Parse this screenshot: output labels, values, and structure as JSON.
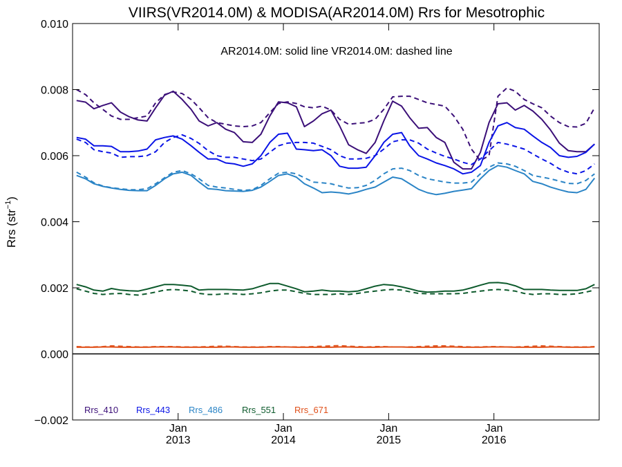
{
  "chart_data": {
    "type": "line",
    "title": "VIIRS(VR2014.0M) & MODISA(AR2014.0M)  Rrs for Mesotrophic",
    "subtitle": "AR2014.0M: solid line   VR2014.0M: dashed line",
    "ylabel": "Rrs (str",
    "ylabel_sup": "−1",
    "ylabel_close": ")",
    "ylim": [
      -0.002,
      0.01
    ],
    "yticks": [
      -0.002,
      0.0,
      0.002,
      0.004,
      0.006,
      0.008,
      0.01
    ],
    "ytick_labels": [
      "−0.002",
      "0.000",
      "0.002",
      "0.004",
      "0.006",
      "0.008",
      "0.010"
    ],
    "xlim": [
      "2012-01-01",
      "2016-12-31"
    ],
    "xticks": [
      {
        "date": "2013-01-01",
        "month": "Jan",
        "year": "2013"
      },
      {
        "date": "2014-01-01",
        "month": "Jan",
        "year": "2014"
      },
      {
        "date": "2015-01-01",
        "month": "Jan",
        "year": "2015"
      },
      {
        "date": "2016-01-01",
        "month": "Jan",
        "year": "2016"
      }
    ],
    "zero_line": 0.0,
    "grid": false,
    "legend_position": "bottom-left",
    "x": [
      "2012-01",
      "2012-02",
      "2012-03",
      "2012-04",
      "2012-05",
      "2012-06",
      "2012-07",
      "2012-08",
      "2012-09",
      "2012-10",
      "2012-11",
      "2012-12",
      "2013-01",
      "2013-02",
      "2013-03",
      "2013-04",
      "2013-05",
      "2013-06",
      "2013-07",
      "2013-08",
      "2013-09",
      "2013-10",
      "2013-11",
      "2013-12",
      "2014-01",
      "2014-02",
      "2014-03",
      "2014-04",
      "2014-05",
      "2014-06",
      "2014-07",
      "2014-08",
      "2014-09",
      "2014-10",
      "2014-11",
      "2014-12",
      "2015-01",
      "2015-02",
      "2015-03",
      "2015-04",
      "2015-05",
      "2015-06",
      "2015-07",
      "2015-08",
      "2015-09",
      "2015-10",
      "2015-11",
      "2015-12",
      "2016-01",
      "2016-02",
      "2016-03",
      "2016-04",
      "2016-05",
      "2016-06",
      "2016-07",
      "2016-08",
      "2016-09",
      "2016-10",
      "2016-11",
      "2016-12"
    ],
    "series": [
      {
        "name": "Rrs_410",
        "source": "AR2014.0M",
        "style": "solid",
        "color": "#3b0f78",
        "values": [
          0.00767,
          0.00762,
          0.00742,
          0.00752,
          0.0076,
          0.00732,
          0.00718,
          0.00708,
          0.00705,
          0.00745,
          0.00783,
          0.00795,
          0.0077,
          0.0074,
          0.00705,
          0.0069,
          0.007,
          0.0068,
          0.0067,
          0.00642,
          0.0064,
          0.00665,
          0.0072,
          0.00763,
          0.0076,
          0.00748,
          0.00688,
          0.00705,
          0.00727,
          0.00738,
          0.0069,
          0.00633,
          0.00618,
          0.00607,
          0.0064,
          0.00705,
          0.00765,
          0.0075,
          0.00715,
          0.00683,
          0.00685,
          0.00655,
          0.0064,
          0.0058,
          0.0056,
          0.0056,
          0.0061,
          0.007,
          0.00757,
          0.0076,
          0.00738,
          0.00752,
          0.00735,
          0.0071,
          0.00678,
          0.00638,
          0.00615,
          0.00612,
          0.00612,
          0.00635
        ]
      },
      {
        "name": "Rrs_410",
        "source": "VR2014.0M",
        "style": "dashed",
        "color": "#3b0f78",
        "values": [
          0.008,
          0.00785,
          0.0076,
          0.0074,
          0.0072,
          0.0071,
          0.0071,
          0.00715,
          0.0072,
          0.0076,
          0.00785,
          0.00793,
          0.00788,
          0.0077,
          0.00745,
          0.00715,
          0.007,
          0.00695,
          0.0069,
          0.00688,
          0.0069,
          0.007,
          0.0073,
          0.00758,
          0.00763,
          0.00758,
          0.00748,
          0.00745,
          0.0075,
          0.00738,
          0.0071,
          0.00695,
          0.00698,
          0.007,
          0.0071,
          0.0074,
          0.00778,
          0.0078,
          0.0078,
          0.0077,
          0.0076,
          0.00755,
          0.0075,
          0.0072,
          0.0068,
          0.0062,
          0.00585,
          0.006,
          0.0078,
          0.00805,
          0.00795,
          0.0077,
          0.00757,
          0.00745,
          0.0072,
          0.007,
          0.00688,
          0.00687,
          0.00698,
          0.00745
        ]
      },
      {
        "name": "Rrs_443",
        "source": "AR2014.0M",
        "style": "solid",
        "color": "#0a14e6",
        "values": [
          0.00655,
          0.0065,
          0.0063,
          0.0063,
          0.00628,
          0.00612,
          0.00612,
          0.00614,
          0.0062,
          0.00648,
          0.00655,
          0.0066,
          0.0065,
          0.0063,
          0.0061,
          0.0059,
          0.0059,
          0.00578,
          0.00575,
          0.00568,
          0.00575,
          0.006,
          0.0064,
          0.00665,
          0.00668,
          0.0062,
          0.00618,
          0.00615,
          0.00618,
          0.006,
          0.00568,
          0.00562,
          0.00562,
          0.00565,
          0.006,
          0.0064,
          0.00665,
          0.0067,
          0.0063,
          0.006,
          0.0059,
          0.00578,
          0.0057,
          0.0056,
          0.00545,
          0.0055,
          0.0057,
          0.0064,
          0.0069,
          0.007,
          0.00685,
          0.0068,
          0.0066,
          0.0064,
          0.00625,
          0.006,
          0.00595,
          0.00598,
          0.0061,
          0.00635
        ]
      },
      {
        "name": "Rrs_443",
        "source": "VR2014.0M",
        "style": "dashed",
        "color": "#0a14e6",
        "values": [
          0.0065,
          0.0064,
          0.00618,
          0.00612,
          0.00608,
          0.00595,
          0.00597,
          0.00597,
          0.006,
          0.00612,
          0.0064,
          0.00655,
          0.00663,
          0.00652,
          0.00637,
          0.00615,
          0.006,
          0.00595,
          0.00595,
          0.0059,
          0.00585,
          0.0059,
          0.0061,
          0.0063,
          0.00638,
          0.0064,
          0.0064,
          0.00638,
          0.00628,
          0.00618,
          0.006,
          0.0059,
          0.0059,
          0.00592,
          0.006,
          0.0062,
          0.00642,
          0.00648,
          0.00648,
          0.00638,
          0.0062,
          0.00608,
          0.00598,
          0.0059,
          0.0058,
          0.00573,
          0.0059,
          0.00615,
          0.0064,
          0.00635,
          0.00628,
          0.0062,
          0.00605,
          0.0059,
          0.00577,
          0.0056,
          0.0055,
          0.00545,
          0.00555,
          0.00575
        ]
      },
      {
        "name": "Rrs_486",
        "source": "AR2014.0M",
        "style": "solid",
        "color": "#2a84c6",
        "values": [
          0.0054,
          0.0053,
          0.00515,
          0.00507,
          0.00502,
          0.00498,
          0.00495,
          0.00494,
          0.00494,
          0.0051,
          0.0053,
          0.00545,
          0.0055,
          0.0054,
          0.0052,
          0.005,
          0.00498,
          0.00494,
          0.00493,
          0.00492,
          0.00495,
          0.00505,
          0.00522,
          0.0054,
          0.00545,
          0.00535,
          0.00515,
          0.00502,
          0.00488,
          0.0049,
          0.00488,
          0.00484,
          0.0049,
          0.00498,
          0.00505,
          0.0052,
          0.00535,
          0.0053,
          0.00515,
          0.00498,
          0.00488,
          0.00482,
          0.00486,
          0.00492,
          0.00496,
          0.005,
          0.0053,
          0.00555,
          0.0057,
          0.00565,
          0.00555,
          0.00545,
          0.00522,
          0.00515,
          0.00505,
          0.00497,
          0.0049,
          0.00488,
          0.00498,
          0.00532
        ]
      },
      {
        "name": "Rrs_486",
        "source": "VR2014.0M",
        "style": "dashed",
        "color": "#2a84c6",
        "values": [
          0.0055,
          0.00535,
          0.00518,
          0.00508,
          0.00503,
          0.005,
          0.00497,
          0.00497,
          0.005,
          0.00515,
          0.00533,
          0.0055,
          0.00555,
          0.00545,
          0.0053,
          0.0051,
          0.00505,
          0.00502,
          0.00498,
          0.00495,
          0.00497,
          0.0051,
          0.0053,
          0.00547,
          0.0055,
          0.00545,
          0.00533,
          0.0052,
          0.00518,
          0.00515,
          0.00508,
          0.00502,
          0.00503,
          0.0051,
          0.00525,
          0.00545,
          0.0056,
          0.00562,
          0.00555,
          0.0054,
          0.0053,
          0.00525,
          0.0052,
          0.00517,
          0.00517,
          0.0052,
          0.00545,
          0.00565,
          0.00578,
          0.00575,
          0.00568,
          0.00555,
          0.0054,
          0.00535,
          0.0053,
          0.00523,
          0.00516,
          0.00515,
          0.00525,
          0.00545
        ]
      },
      {
        "name": "Rrs_551",
        "source": "AR2014.0M",
        "style": "solid",
        "color": "#0d5a2c",
        "values": [
          0.0021,
          0.00203,
          0.00193,
          0.0019,
          0.00198,
          0.00193,
          0.00191,
          0.0019,
          0.00196,
          0.00203,
          0.0021,
          0.0021,
          0.00208,
          0.00205,
          0.00193,
          0.00195,
          0.00195,
          0.00195,
          0.00194,
          0.00193,
          0.00197,
          0.00205,
          0.00213,
          0.00213,
          0.00205,
          0.00197,
          0.00188,
          0.0019,
          0.00193,
          0.0019,
          0.0019,
          0.00188,
          0.0019,
          0.00197,
          0.00205,
          0.0021,
          0.00208,
          0.00203,
          0.00197,
          0.0019,
          0.00187,
          0.00188,
          0.0019,
          0.0019,
          0.00193,
          0.002,
          0.00208,
          0.00215,
          0.00216,
          0.00213,
          0.00206,
          0.00195,
          0.00195,
          0.00195,
          0.00193,
          0.00192,
          0.00192,
          0.00192,
          0.00197,
          0.0021
        ]
      },
      {
        "name": "Rrs_551",
        "source": "VR2014.0M",
        "style": "dashed",
        "color": "#0d5a2c",
        "values": [
          0.00197,
          0.0019,
          0.00183,
          0.0018,
          0.00182,
          0.00183,
          0.0018,
          0.00178,
          0.00182,
          0.00187,
          0.00193,
          0.00195,
          0.00193,
          0.0019,
          0.00183,
          0.0018,
          0.0018,
          0.00182,
          0.00182,
          0.0018,
          0.00182,
          0.00185,
          0.0019,
          0.00193,
          0.00193,
          0.00188,
          0.00183,
          0.0018,
          0.0018,
          0.0018,
          0.00182,
          0.0018,
          0.00183,
          0.00187,
          0.0019,
          0.00193,
          0.00195,
          0.00193,
          0.00188,
          0.00183,
          0.00182,
          0.00182,
          0.00182,
          0.00182,
          0.00183,
          0.00187,
          0.0019,
          0.00193,
          0.00195,
          0.00193,
          0.0019,
          0.00183,
          0.0018,
          0.00182,
          0.00182,
          0.0018,
          0.0018,
          0.00182,
          0.00187,
          0.00193
        ]
      },
      {
        "name": "Rrs_671",
        "source": "AR2014.0M",
        "style": "solid",
        "color": "#e0501a",
        "values": [
          0.0002,
          0.0002,
          0.0002,
          0.00021,
          0.00021,
          0.0002,
          0.0002,
          0.0002,
          0.0002,
          0.00021,
          0.00021,
          0.00021,
          0.0002,
          0.0002,
          0.0002,
          0.0002,
          0.0002,
          0.00021,
          0.00021,
          0.0002,
          0.0002,
          0.0002,
          0.00021,
          0.00021,
          0.00021,
          0.0002,
          0.0002,
          0.0002,
          0.0002,
          0.0002,
          0.00021,
          0.00021,
          0.0002,
          0.0002,
          0.0002,
          0.00021,
          0.00021,
          0.00021,
          0.0002,
          0.0002,
          0.0002,
          0.0002,
          0.00021,
          0.00021,
          0.0002,
          0.0002,
          0.0002,
          0.00021,
          0.00021,
          0.00021,
          0.0002,
          0.0002,
          0.0002,
          0.0002,
          0.00021,
          0.00021,
          0.0002,
          0.0002,
          0.0002,
          0.00021
        ]
      },
      {
        "name": "Rrs_671",
        "source": "VR2014.0M",
        "style": "dashed",
        "color": "#e0501a",
        "values": [
          0.00022,
          0.00021,
          0.00021,
          0.00022,
          0.00024,
          0.00023,
          0.00022,
          0.00021,
          0.00021,
          0.00022,
          0.00022,
          0.00022,
          0.00021,
          0.00021,
          0.00021,
          0.00022,
          0.00023,
          0.00023,
          0.00022,
          0.00021,
          0.00021,
          0.00021,
          0.00022,
          0.00022,
          0.00021,
          0.00021,
          0.00021,
          0.00022,
          0.00023,
          0.00024,
          0.00025,
          0.00023,
          0.00022,
          0.00021,
          0.00022,
          0.00022,
          0.00021,
          0.00021,
          0.00021,
          0.00022,
          0.00023,
          0.00024,
          0.00024,
          0.00023,
          0.00022,
          0.00021,
          0.00021,
          0.00022,
          0.00022,
          0.00021,
          0.00021,
          0.00022,
          0.00023,
          0.00024,
          0.00023,
          0.00022,
          0.00021,
          0.00021,
          0.00021,
          0.00022
        ]
      }
    ],
    "legend": [
      {
        "label": "Rrs_410",
        "color": "#3b0f78"
      },
      {
        "label": "Rrs_443",
        "color": "#0a14e6"
      },
      {
        "label": "Rrs_486",
        "color": "#2a84c6"
      },
      {
        "label": "Rrs_551",
        "color": "#0d5a2c"
      },
      {
        "label": "Rrs_671",
        "color": "#e0501a"
      }
    ]
  }
}
